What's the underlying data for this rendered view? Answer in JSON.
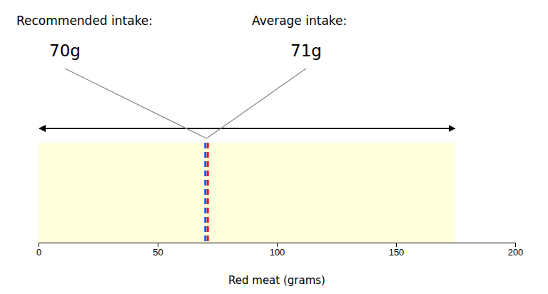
{
  "chart_data": {
    "type": "reference_lines",
    "xlabel": "Red meat (grams)",
    "xlim": [
      0,
      200
    ],
    "xticks": [
      0,
      50,
      100,
      150,
      200
    ],
    "range": {
      "values": [
        0,
        175
      ],
      "color": "#ffffdd"
    },
    "arrow": {
      "values": [
        0,
        175
      ]
    },
    "series": [
      {
        "name": "Recommended intake:",
        "values": [
          70
        ],
        "value_labels": [
          "70g"
        ],
        "color": "#0055ff",
        "line_style": "dashed"
      },
      {
        "name": "Average intake:",
        "values": [
          71
        ],
        "value_labels": [
          "71g"
        ],
        "color": "#ff0000",
        "line_style": "dashed"
      }
    ]
  }
}
